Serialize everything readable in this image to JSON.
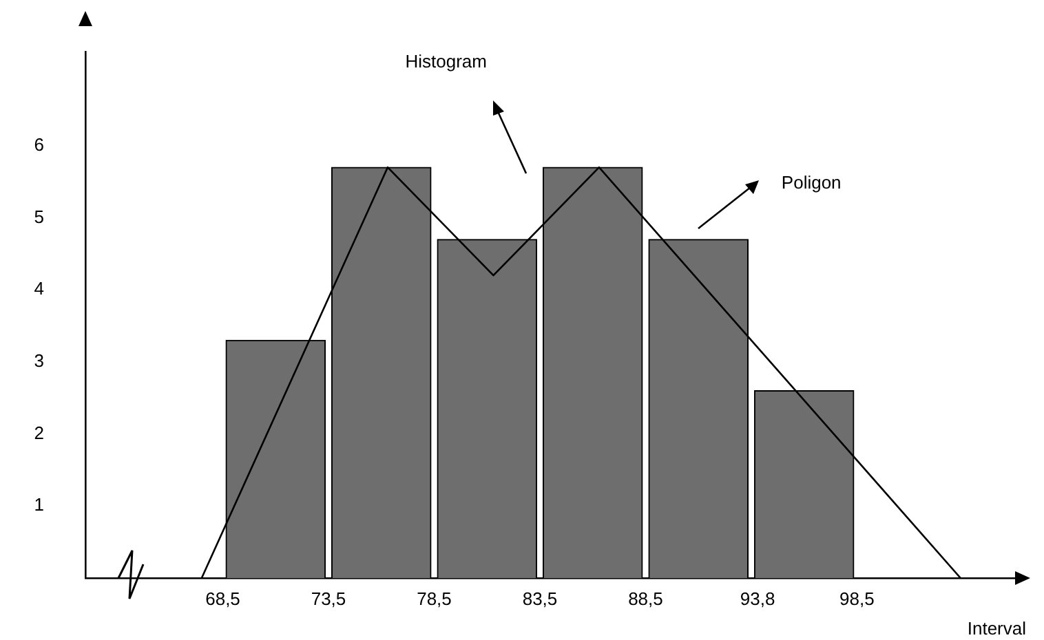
{
  "chart_data": {
    "type": "histogram",
    "xlabel": "Interval",
    "bins": [
      68.5,
      73.5,
      78.5,
      83.5,
      88.5,
      93.5,
      98.5
    ],
    "values": [
      3.3,
      5.7,
      4.7,
      5.7,
      4.7,
      2.6
    ],
    "color": "#6e6e6e",
    "series": [
      {
        "type": "line",
        "color": "#000000",
        "x": [
          67.5,
          76.3,
          81.3,
          86.3,
          103.4
        ],
        "values": [
          0,
          5.7,
          4.2,
          5.7,
          0
        ]
      }
    ],
    "annotations": [
      "Histogram",
      "Poligon"
    ],
    "xlim": [
      62,
      106.5
    ],
    "ylim": [
      0,
      7.3
    ],
    "xticks": [
      {
        "value": 68.5,
        "label": "68,5"
      },
      {
        "value": 73.5,
        "label": "73,5"
      },
      {
        "value": 78.5,
        "label": "78,5"
      },
      {
        "value": 83.5,
        "label": "83,5"
      },
      {
        "value": 88.5,
        "label": "88,5"
      },
      {
        "value": 93.8,
        "label": "93,8"
      },
      {
        "value": 98.5,
        "label": "98,5"
      }
    ],
    "yticks": [
      1,
      2,
      3,
      4,
      5,
      6
    ],
    "grid": false,
    "legend": false,
    "marker": "none",
    "line_style": "solid"
  }
}
